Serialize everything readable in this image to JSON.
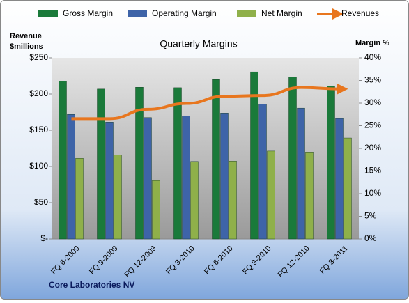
{
  "chart_data": {
    "type": "bar",
    "title": "Quarterly Margins",
    "y_label": [
      "Revenue",
      "$millions"
    ],
    "y2_label": "Margin %",
    "footer": "Core Laboratories NV",
    "categories": [
      "FQ 6-2009",
      "FQ 9-2009",
      "FQ 12-2009",
      "FQ 3-2010",
      "FQ 6-2010",
      "FQ 9-2010",
      "FQ 12-2010",
      "FQ 3-2011"
    ],
    "series": [
      {
        "name": "Gross Margin",
        "color": "#1a7a3a",
        "axis": "y2",
        "values": [
          34.8,
          33.1,
          33.5,
          33.4,
          35.2,
          36.9,
          35.8,
          33.8
        ]
      },
      {
        "name": "Operating Margin",
        "color": "#3e64a8",
        "axis": "y2",
        "values": [
          27.5,
          25.8,
          26.8,
          27.2,
          27.8,
          29.8,
          28.9,
          26.6
        ]
      },
      {
        "name": "Net Margin",
        "color": "#8fb04a",
        "axis": "y2",
        "values": [
          17.8,
          18.5,
          12.9,
          17.1,
          17.2,
          19.4,
          19.2,
          22.3
        ]
      },
      {
        "name": "Revenues",
        "color": "#e8761e",
        "type": "line",
        "values": [
          166,
          166,
          179,
          187,
          197,
          198,
          209,
          207
        ]
      }
    ],
    "ylim": [
      0,
      250
    ],
    "yticks": [
      {
        "value": 0,
        "label": "$-"
      },
      {
        "value": 50,
        "label": "$50"
      },
      {
        "value": 100,
        "label": "$100"
      },
      {
        "value": 150,
        "label": "$150"
      },
      {
        "value": 200,
        "label": "$200"
      },
      {
        "value": 250,
        "label": "$250"
      }
    ],
    "y2lim": [
      0,
      40
    ],
    "y2ticks": [
      {
        "value": 0,
        "label": "0%"
      },
      {
        "value": 5,
        "label": "5%"
      },
      {
        "value": 10,
        "label": "10%"
      },
      {
        "value": 15,
        "label": "15%"
      },
      {
        "value": 20,
        "label": "20%"
      },
      {
        "value": 25,
        "label": "25%"
      },
      {
        "value": 30,
        "label": "30%"
      },
      {
        "value": 35,
        "label": "35%"
      },
      {
        "value": 40,
        "label": "40%"
      }
    ],
    "legend": "top"
  }
}
